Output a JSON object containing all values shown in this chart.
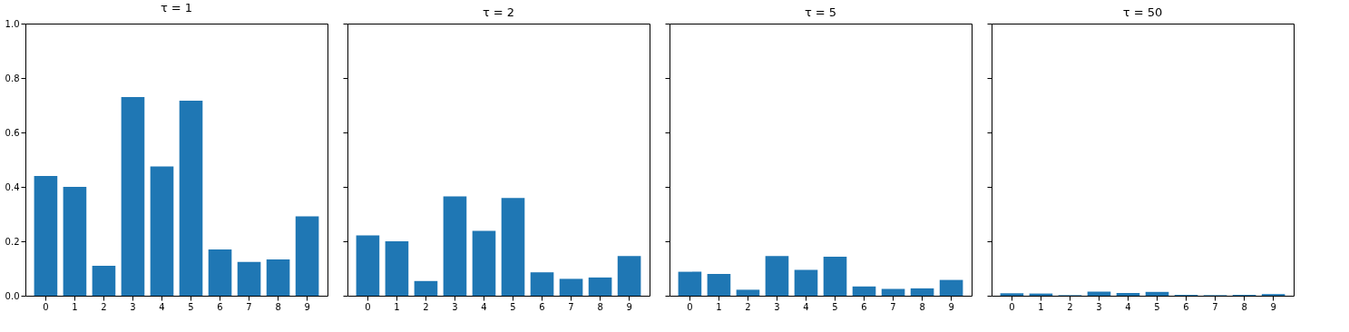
{
  "chart_data": [
    {
      "type": "bar",
      "title": "τ = 1",
      "categories": [
        "0",
        "1",
        "2",
        "3",
        "4",
        "5",
        "6",
        "7",
        "8",
        "9"
      ],
      "color": "#1f77b4",
      "values": [
        0.44,
        0.4,
        0.11,
        0.73,
        0.475,
        0.717,
        0.17,
        0.124,
        0.133,
        0.292
      ],
      "ylim": [
        0,
        1
      ],
      "yticks": [
        {
          "value": 0,
          "label": "0.0"
        },
        {
          "value": 0.2,
          "label": "0.2"
        },
        {
          "value": 0.4,
          "label": "0.4"
        },
        {
          "value": 0.6,
          "label": "0.6"
        },
        {
          "value": 0.8,
          "label": "0.8"
        },
        {
          "value": 1,
          "label": "1.0"
        }
      ],
      "grid": false
    },
    {
      "type": "bar",
      "title": "τ = 2",
      "categories": [
        "0",
        "1",
        "2",
        "3",
        "4",
        "5",
        "6",
        "7",
        "8",
        "9"
      ],
      "color": "#1f77b4",
      "values": [
        0.222,
        0.2,
        0.054,
        0.365,
        0.238,
        0.359,
        0.086,
        0.062,
        0.067,
        0.146
      ],
      "ylim": [
        0,
        1
      ],
      "yticks": [
        {
          "value": 0,
          "label": null
        },
        {
          "value": 0.2,
          "label": null
        },
        {
          "value": 0.4,
          "label": null
        },
        {
          "value": 0.6,
          "label": null
        },
        {
          "value": 0.8,
          "label": null
        },
        {
          "value": 1,
          "label": null
        }
      ],
      "grid": false,
      "tick_labels": "x"
    },
    {
      "type": "bar",
      "title": "τ = 5",
      "categories": [
        "0",
        "1",
        "2",
        "3",
        "4",
        "5",
        "6",
        "7",
        "8",
        "9"
      ],
      "color": "#1f77b4",
      "values": [
        0.088,
        0.08,
        0.022,
        0.146,
        0.095,
        0.143,
        0.034,
        0.025,
        0.027,
        0.058
      ],
      "ylim": [
        0,
        1
      ],
      "yticks": [
        {
          "value": 0,
          "label": null
        },
        {
          "value": 0.2,
          "label": null
        },
        {
          "value": 0.4,
          "label": null
        },
        {
          "value": 0.6,
          "label": null
        },
        {
          "value": 0.8,
          "label": null
        },
        {
          "value": 1,
          "label": null
        }
      ],
      "grid": false,
      "tick_labels": "x"
    },
    {
      "type": "bar",
      "title": "τ = 50",
      "categories": [
        "0",
        "1",
        "2",
        "3",
        "4",
        "5",
        "6",
        "7",
        "8",
        "9"
      ],
      "color": "#1f77b4",
      "values": [
        0.009,
        0.008,
        0.002,
        0.015,
        0.01,
        0.014,
        0.003,
        0.002,
        0.003,
        0.006
      ],
      "ylim": [
        0,
        1
      ],
      "yticks": [
        {
          "value": 0,
          "label": null
        },
        {
          "value": 0.2,
          "label": null
        },
        {
          "value": 0.4,
          "label": null
        },
        {
          "value": 0.6,
          "label": null
        },
        {
          "value": 0.8,
          "label": null
        },
        {
          "value": 1,
          "label": null
        }
      ],
      "grid": false,
      "tick_labels": "x"
    }
  ]
}
